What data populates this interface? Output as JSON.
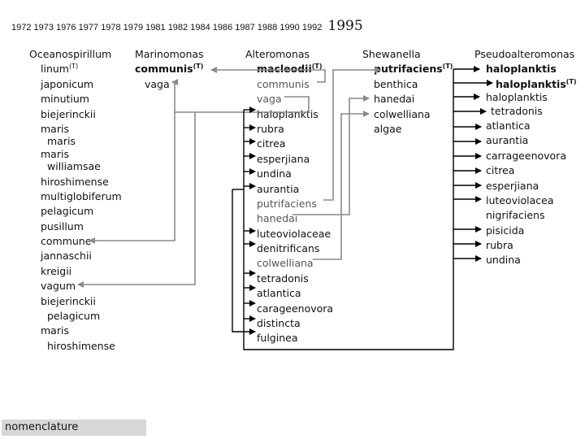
{
  "timeline": {
    "years": "1972 1973 1976 1977 1978 1979 1981 1982 1984 1986 1987 1988 1990 1992",
    "highlight_year": "1995"
  },
  "columns": {
    "oceanospirillum": {
      "genus": "Oceanospirillum",
      "species": [
        "linum",
        "japonicum",
        "minutium",
        "biejerinckii",
        "maris",
        "maris",
        "maris",
        "williamsae",
        "hiroshimense",
        "multiglobiferum",
        "pelagicum",
        "pusillum",
        "commune",
        "jannaschii",
        "kreigii",
        "vagum",
        "biejerinckii",
        "pelagicum",
        "maris",
        "hiroshimense"
      ],
      "type_mark": "(T)"
    },
    "marinomonas": {
      "genus": "Marinomonas",
      "species": [
        "communis",
        "vaga"
      ],
      "type_mark": "(T)"
    },
    "alteromonas": {
      "genus": "Alteromonas",
      "species": [
        "macleodii",
        "communis",
        "vaga",
        "haloplanktis",
        "rubra",
        "citrea",
        "esperjiana",
        "undina",
        "aurantia",
        "putrifaciens",
        "hanedai",
        "luteoviolaceae",
        "denitrificans",
        "colwelliana",
        "tetradonis",
        "atlantica",
        "carageenovora",
        "distincta",
        "fulginea"
      ],
      "type_mark": "(T)"
    },
    "shewanella": {
      "genus": "Shewanella",
      "species": [
        "putrifaciens",
        "benthica",
        "hanedai",
        "colwelliana",
        "algae"
      ],
      "type_mark": "(T)"
    },
    "pseudoalteromonas": {
      "genus": "Pseudoalteromonas",
      "species": [
        "haloplanktis",
        "haloplanktis",
        "haloplanktis",
        "tetradonis",
        "atlantica",
        "aurantia",
        "carrageenovora",
        "citrea",
        "esperjiana",
        "luteoviolacea",
        "nigrifaciens",
        "pisicida",
        "rubra",
        "undina"
      ],
      "type_mark": "(T)"
    }
  },
  "footer": {
    "label": "nomenclature"
  },
  "colors": {
    "arrow_grey": "#8a8a8a",
    "arrow_black": "#000000",
    "footer_bg": "#d7d7d7"
  }
}
